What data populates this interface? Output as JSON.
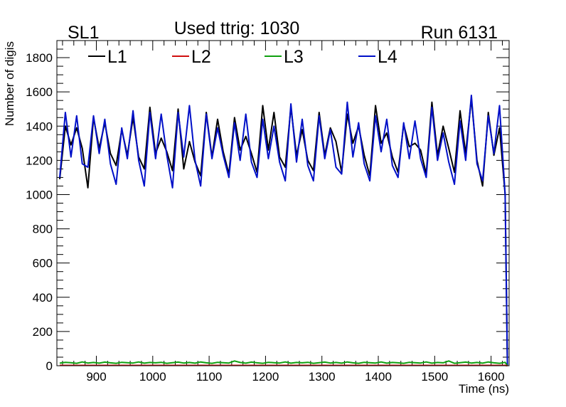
{
  "header": {
    "left": "SL1",
    "center": "Used ttrig: 1030",
    "right": "Run 6131"
  },
  "chart_data": {
    "type": "line",
    "title": "Used ttrig: 1030",
    "xlabel": "Time (ns)",
    "ylabel": "Number of digis",
    "xlim": [
      830,
      1632
    ],
    "ylim": [
      0,
      1900
    ],
    "x_ticks": [
      900,
      1000,
      1100,
      1200,
      1300,
      1400,
      1500,
      1600
    ],
    "y_ticks": [
      0,
      200,
      400,
      600,
      800,
      1000,
      1200,
      1400,
      1600,
      1800
    ],
    "legend_position": "top",
    "x": [
      835,
      845,
      855,
      865,
      875,
      885,
      895,
      905,
      915,
      925,
      935,
      945,
      955,
      965,
      975,
      985,
      995,
      1005,
      1015,
      1025,
      1035,
      1045,
      1055,
      1065,
      1075,
      1085,
      1095,
      1105,
      1115,
      1125,
      1135,
      1145,
      1155,
      1165,
      1175,
      1185,
      1195,
      1205,
      1215,
      1225,
      1235,
      1245,
      1255,
      1265,
      1275,
      1285,
      1295,
      1305,
      1315,
      1325,
      1335,
      1345,
      1355,
      1365,
      1375,
      1385,
      1395,
      1405,
      1415,
      1425,
      1435,
      1445,
      1455,
      1465,
      1475,
      1485,
      1495,
      1505,
      1515,
      1525,
      1535,
      1545,
      1555,
      1565,
      1575,
      1585,
      1595,
      1605,
      1615,
      1625,
      1629
    ],
    "series": [
      {
        "name": "L1",
        "color": "#000000",
        "values": [
          1090,
          1400,
          1290,
          1390,
          1270,
          1040,
          1450,
          1270,
          1420,
          1240,
          1170,
          1380,
          1230,
          1450,
          1220,
          1150,
          1510,
          1240,
          1330,
          1250,
          1140,
          1500,
          1150,
          1310,
          1190,
          1110,
          1480,
          1220,
          1440,
          1250,
          1120,
          1450,
          1260,
          1340,
          1240,
          1130,
          1520,
          1260,
          1480,
          1220,
          1160,
          1510,
          1230,
          1380,
          1200,
          1140,
          1480,
          1230,
          1390,
          1310,
          1130,
          1470,
          1300,
          1400,
          1230,
          1110,
          1520,
          1300,
          1360,
          1220,
          1130,
          1410,
          1280,
          1300,
          1260,
          1120,
          1540,
          1230,
          1400,
          1270,
          1130,
          1490,
          1240,
          1560,
          1200,
          1050,
          1480,
          1230,
          1390,
          1000,
          0
        ]
      },
      {
        "name": "L2",
        "color": "#d01010",
        "values": [
          2,
          2,
          2,
          2,
          2,
          2,
          2,
          2,
          2,
          2,
          2,
          2,
          2,
          2,
          2,
          2,
          2,
          2,
          2,
          2,
          2,
          2,
          2,
          2,
          2,
          2,
          2,
          2,
          2,
          2,
          2,
          2,
          2,
          2,
          2,
          2,
          2,
          2,
          2,
          2,
          2,
          2,
          2,
          2,
          2,
          2,
          2,
          2,
          2,
          2,
          2,
          2,
          2,
          2,
          2,
          2,
          2,
          2,
          2,
          2,
          2,
          2,
          2,
          2,
          2,
          2,
          2,
          2,
          2,
          2,
          2,
          2,
          2,
          2,
          2,
          2,
          2,
          2,
          2,
          2,
          0
        ]
      },
      {
        "name": "L3",
        "color": "#10a010",
        "values": [
          15,
          20,
          18,
          14,
          22,
          16,
          19,
          15,
          21,
          17,
          14,
          20,
          18,
          16,
          22,
          15,
          19,
          17,
          20,
          14,
          18,
          21,
          16,
          19,
          15,
          22,
          17,
          14,
          20,
          18,
          16,
          28,
          19,
          15,
          21,
          17,
          14,
          20,
          18,
          16,
          22,
          15,
          19,
          17,
          20,
          14,
          18,
          21,
          16,
          19,
          15,
          22,
          17,
          14,
          20,
          18,
          16,
          22,
          15,
          19,
          17,
          14,
          20,
          18,
          16,
          22,
          15,
          19,
          17,
          28,
          14,
          18,
          21,
          16,
          19,
          15,
          22,
          17,
          14,
          20,
          0
        ]
      },
      {
        "name": "L4",
        "color": "#0010c8",
        "values": [
          1100,
          1480,
          1220,
          1460,
          1180,
          1160,
          1460,
          1240,
          1440,
          1180,
          1060,
          1390,
          1210,
          1490,
          1200,
          1050,
          1480,
          1210,
          1470,
          1230,
          1040,
          1480,
          1220,
          1520,
          1200,
          1050,
          1470,
          1210,
          1390,
          1230,
          1100,
          1420,
          1200,
          1470,
          1190,
          1100,
          1440,
          1210,
          1400,
          1190,
          1080,
          1530,
          1190,
          1440,
          1170,
          1080,
          1460,
          1210,
          1380,
          1160,
          1120,
          1540,
          1220,
          1420,
          1180,
          1080,
          1460,
          1250,
          1440,
          1170,
          1100,
          1420,
          1210,
          1430,
          1210,
          1100,
          1510,
          1200,
          1360,
          1190,
          1060,
          1430,
          1200,
          1580,
          1180,
          1080,
          1460,
          1240,
          1520,
          1000,
          0
        ]
      }
    ]
  }
}
